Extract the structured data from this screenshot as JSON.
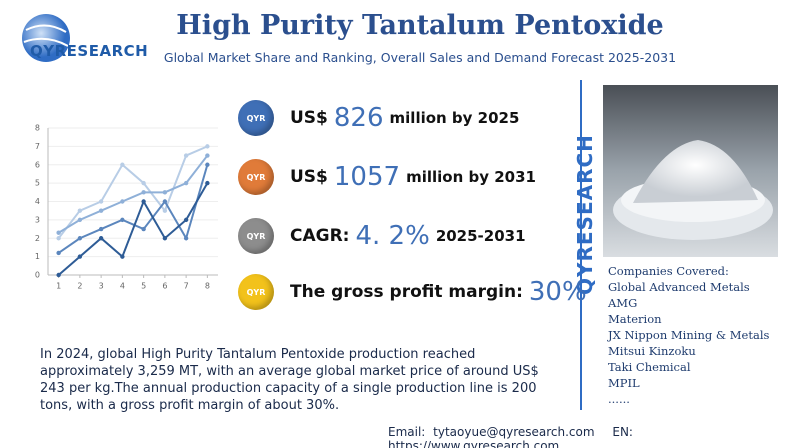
{
  "header": {
    "logo": "QYRESEARCH",
    "title": "High Purity Tantalum Pentoxide",
    "subtitle": "Global Market Share and Ranking, Overall Sales and Demand Forecast 2025-2031"
  },
  "chart_data": {
    "type": "line",
    "x": [
      1,
      2,
      3,
      4,
      5,
      6,
      7,
      8
    ],
    "xlim": [
      0.5,
      8.5
    ],
    "xticks": [
      1,
      2,
      3,
      4,
      5,
      6,
      7,
      8
    ],
    "ylim": [
      0,
      8
    ],
    "yticks": [
      0,
      1,
      2,
      3,
      4,
      5,
      6,
      7,
      8
    ],
    "grid": true,
    "series": [
      {
        "color": "#b8cde6",
        "values": [
          2,
          3.5,
          4,
          6,
          5,
          3.5,
          6.5,
          7
        ]
      },
      {
        "color": "#8fb0d8",
        "values": [
          2.3,
          3,
          3.5,
          4,
          4.5,
          4.5,
          5,
          6.5
        ]
      },
      {
        "color": "#5b86bd",
        "values": [
          1.2,
          2,
          2.5,
          3,
          2.5,
          4,
          2,
          6
        ]
      },
      {
        "color": "#2e5c96",
        "values": [
          0,
          1,
          2,
          1,
          4,
          2,
          3,
          5
        ]
      }
    ]
  },
  "stats": [
    {
      "badge": "QYR",
      "prefix": "US$",
      "value": "826",
      "suffix": "million by 2025"
    },
    {
      "badge": "QYR",
      "prefix": "US$",
      "value": "1057",
      "suffix": "million by 2031"
    },
    {
      "badge": "QYR",
      "prefix": "CAGR:",
      "value": "4. 2%",
      "suffix": "2025-2031"
    },
    {
      "badge": "QYR",
      "prefix": "The gross profit margin:",
      "value": "30%",
      "suffix": ""
    }
  ],
  "brand_vertical": "QYRESEARCH",
  "companies": {
    "heading": "Companies Covered:",
    "items": [
      "Global Advanced Metals",
      "AMG",
      "Materion",
      "JX Nippon Mining & Metals",
      "Mitsui Kinzoku",
      "Taki Chemical",
      "MPIL",
      "......"
    ]
  },
  "paragraph": "In 2024, global High Purity Tantalum Pentoxide production reached approximately 3,259 MT, with an average global market price of around US$ 243 per kg.The annual production capacity of a single production line is 200 tons, with a gross profit margin of about 30%.",
  "footer": {
    "email_label": "Email:",
    "email": "tytaoyue@qyresearch.com",
    "web_label": "EN:",
    "web": "https://www.qyresearch.com"
  }
}
